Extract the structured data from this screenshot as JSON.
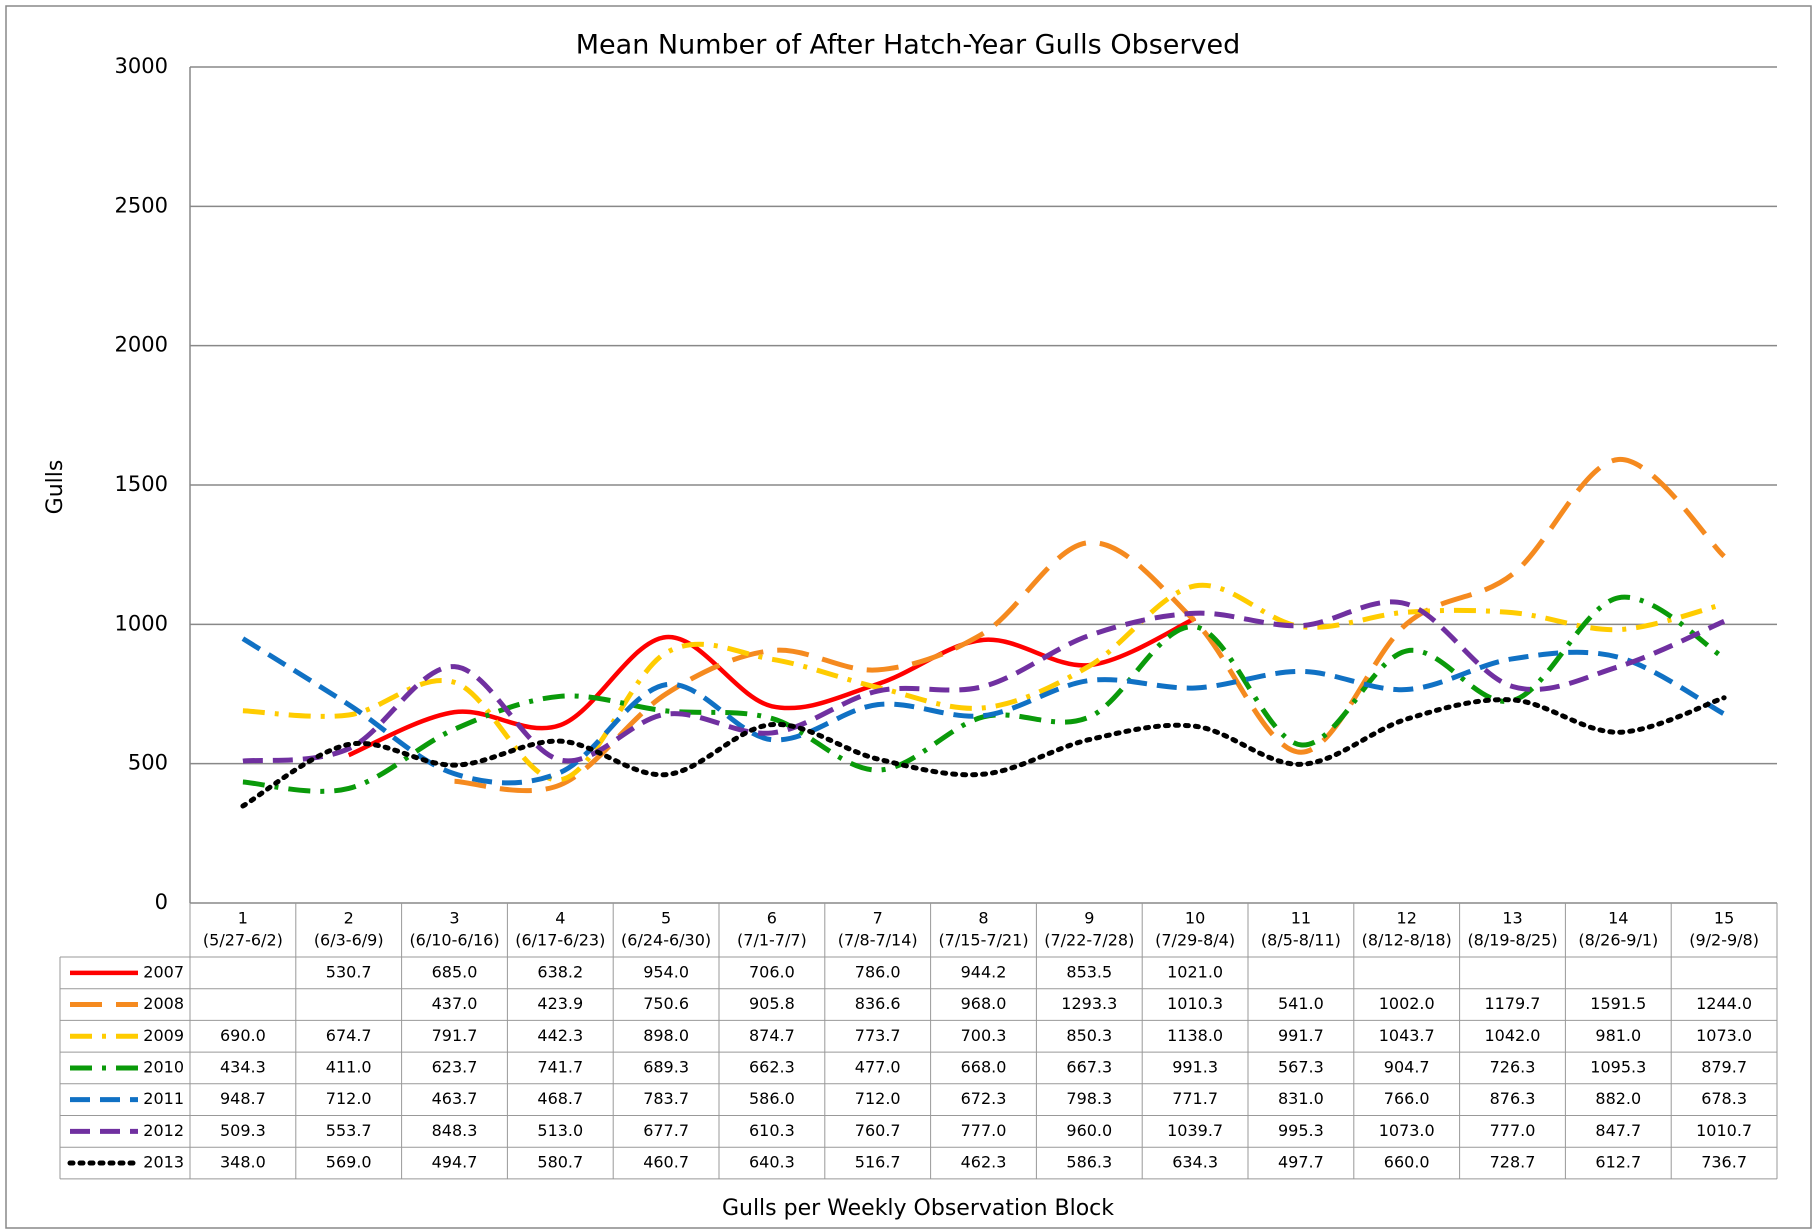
{
  "chart_data": {
    "type": "line",
    "title": "Mean Number of After Hatch-Year Gulls Observed",
    "y_label": "Gulls",
    "x_label": "Gulls per Weekly Observation Block",
    "categories": [
      "1",
      "2",
      "3",
      "4",
      "5",
      "6",
      "7",
      "8",
      "9",
      "10",
      "11",
      "12",
      "13",
      "14",
      "15"
    ],
    "category_ranges": [
      "(5/27-6/2)",
      "(6/3-6/9)",
      "(6/10-6/16)",
      "(6/17-6/23)",
      "(6/24-6/30)",
      "(7/1-7/7)",
      "(7/8-7/14)",
      "(7/15-7/21)",
      "(7/22-7/28)",
      "(7/29-8/4)",
      "(8/5-8/11)",
      "(8/12-8/18)",
      "(8/19-8/25)",
      "(8/26-9/1)",
      "(9/2-9/8)"
    ],
    "ylim": [
      0,
      3000
    ],
    "yticks": [
      0,
      500,
      1000,
      1500,
      2000,
      2500,
      3000
    ],
    "grid": true,
    "smooth": true,
    "legend": "table",
    "series": [
      {
        "name": "2007",
        "color": "#ff0000",
        "dash": "solid",
        "values": [
          null,
          530.7,
          685.0,
          638.2,
          954.0,
          706.0,
          786.0,
          944.2,
          853.5,
          1021.0,
          null,
          null,
          null,
          null,
          null
        ],
        "value_labels": [
          null,
          "530.7",
          "685.0",
          "638.2",
          "954.0",
          "706.0",
          "786.0",
          "944.2",
          "853.5",
          "1021.0",
          null,
          null,
          null,
          null,
          null
        ]
      },
      {
        "name": "2008",
        "color": "#f58a1f",
        "dash": "longdash",
        "values": [
          null,
          null,
          437.0,
          423.9,
          750.6,
          905.8,
          836.6,
          968.0,
          1293.3,
          1010.3,
          541.0,
          1002.0,
          1179.7,
          1591.5,
          1244.0
        ],
        "value_labels": [
          null,
          null,
          "437.0",
          "423.9",
          "750.6",
          "905.8",
          "836.6",
          "968.0",
          "1293.3",
          "1010.3",
          "541.0",
          "1002.0",
          "1179.7",
          "1591.5",
          "1244.0"
        ]
      },
      {
        "name": "2009",
        "color": "#ffcc00",
        "dash": "dashdot",
        "values": [
          690.0,
          674.7,
          791.7,
          442.3,
          898.0,
          874.7,
          773.7,
          700.3,
          850.3,
          1138.0,
          991.7,
          1043.7,
          1042.0,
          981.0,
          1073.0
        ],
        "value_labels": [
          "690.0",
          "674.7",
          "791.7",
          "442.3",
          "898.0",
          "874.7",
          "773.7",
          "700.3",
          "850.3",
          "1138.0",
          "991.7",
          "1043.7",
          "1042.0",
          "981.0",
          "1073.0"
        ]
      },
      {
        "name": "2010",
        "color": "#0a9a0a",
        "dash": "dashdot",
        "values": [
          434.3,
          411.0,
          623.7,
          741.7,
          689.3,
          662.3,
          477.0,
          668.0,
          667.3,
          991.3,
          567.3,
          904.7,
          726.3,
          1095.3,
          879.7
        ],
        "value_labels": [
          "434.3",
          "411.0",
          "623.7",
          "741.7",
          "689.3",
          "662.3",
          "477.0",
          "668.0",
          "667.3",
          "991.3",
          "567.3",
          "904.7",
          "726.3",
          "1095.3",
          "879.7"
        ]
      },
      {
        "name": "2011",
        "color": "#1071c4",
        "dash": "dash",
        "values": [
          948.7,
          712.0,
          463.7,
          468.7,
          783.7,
          586.0,
          712.0,
          672.3,
          798.3,
          771.7,
          831.0,
          766.0,
          876.3,
          882.0,
          678.3
        ],
        "value_labels": [
          "948.7",
          "712.0",
          "463.7",
          "468.7",
          "783.7",
          "586.0",
          "712.0",
          "672.3",
          "798.3",
          "771.7",
          "831.0",
          "766.0",
          "876.3",
          "882.0",
          "678.3"
        ]
      },
      {
        "name": "2012",
        "color": "#7030a0",
        "dash": "dash",
        "values": [
          509.3,
          553.7,
          848.3,
          513.0,
          677.7,
          610.3,
          760.7,
          777.0,
          960.0,
          1039.7,
          995.3,
          1073.0,
          777.0,
          847.7,
          1010.7
        ],
        "value_labels": [
          "509.3",
          "553.7",
          "848.3",
          "513.0",
          "677.7",
          "610.3",
          "760.7",
          "777.0",
          "960.0",
          "1039.7",
          "995.3",
          "1073.0",
          "777.0",
          "847.7",
          "1010.7"
        ]
      },
      {
        "name": "2013",
        "color": "#000000",
        "dash": "dot",
        "values": [
          348.0,
          569.0,
          494.7,
          580.7,
          460.7,
          640.3,
          516.7,
          462.3,
          586.3,
          634.3,
          497.7,
          660.0,
          728.7,
          612.7,
          736.7
        ],
        "value_labels": [
          "348.0",
          "569.0",
          "494.7",
          "580.7",
          "460.7",
          "640.3",
          "516.7",
          "462.3",
          "586.3",
          "634.3",
          "497.7",
          "660.0",
          "728.7",
          "612.7",
          "736.7"
        ]
      }
    ]
  }
}
